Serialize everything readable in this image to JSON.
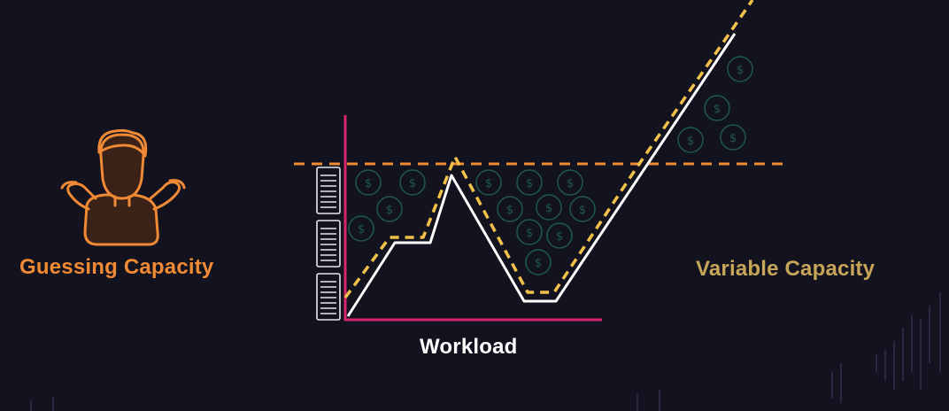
{
  "labels": {
    "guessing_capacity": "Guessing Capacity",
    "variable_capacity": "Variable Capacity",
    "workload_axis": "Workload"
  },
  "icons": {
    "person": "shrugging-person-icon",
    "servers": "server-rack-icon",
    "coins": "dollar-coin-icon"
  },
  "coin_symbol": "$",
  "colors": {
    "background": "#13121f",
    "guessing_accent": "#f08a34",
    "variable_accent": "#c7a559",
    "axis": "#d6246e",
    "workload_line": "#ffffff",
    "variable_capacity_line": "#f2c14a",
    "fixed_capacity_line": "#f08a34",
    "coin": "#1f5a4e"
  }
}
